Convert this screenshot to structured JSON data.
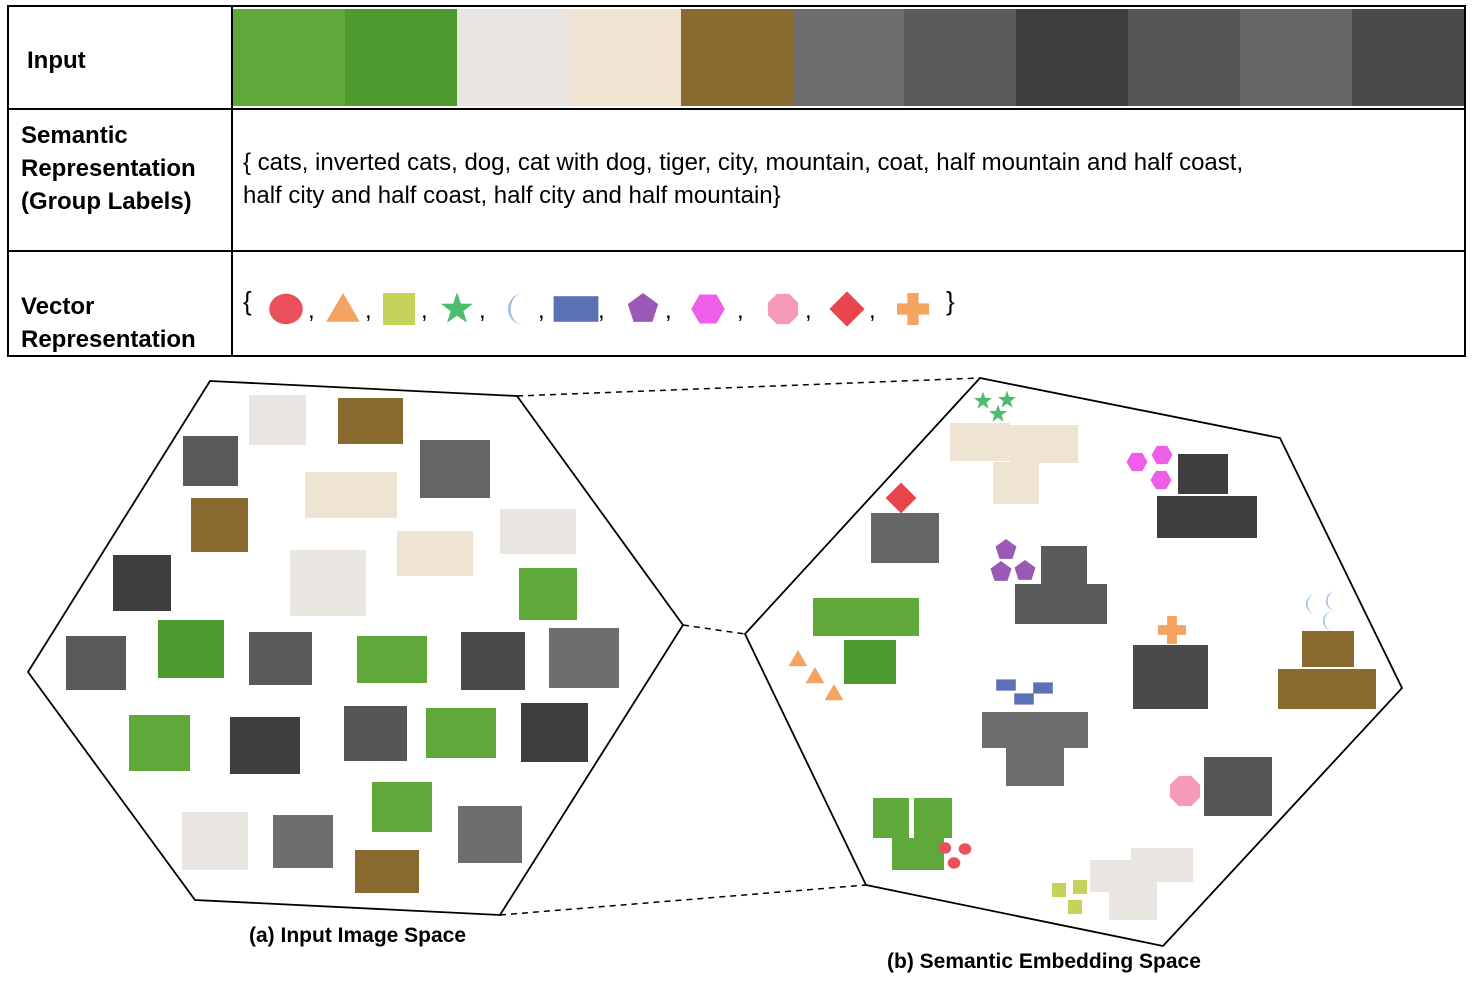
{
  "table": {
    "input_label": "Input",
    "semantic_label_lines": [
      "Semantic",
      "Representation",
      "(Group  Labels)"
    ],
    "semantic_text_lines": [
      "{ cats, inverted cats, dog,  cat with dog, tiger, city, mountain, coat, half mountain and half coast,",
      "half city and half coast, half city and half mountain}"
    ],
    "vector_label_lines": [
      "Vector",
      "Representation"
    ],
    "brace_open": "{",
    "brace_close": "}",
    "separator": ",",
    "input_images": [
      {
        "name": "cat-image",
        "color": "#5fa83a"
      },
      {
        "name": "inverted-cat-image",
        "color": "#4f9a2e"
      },
      {
        "name": "dog-image",
        "color": "#e9e6e2"
      },
      {
        "name": "cat-with-dog-image",
        "color": "#efe3d3"
      },
      {
        "name": "tiger-image",
        "color": "#8a6a2e"
      },
      {
        "name": "city-image",
        "color": "#6e6e6e"
      },
      {
        "name": "mountain-image",
        "color": "#5a5a5a"
      },
      {
        "name": "coast-image",
        "color": "#3e3e3e"
      },
      {
        "name": "half-mountain-half-coast-image",
        "color": "#555555"
      },
      {
        "name": "half-city-half-coast-image",
        "color": "#666666"
      },
      {
        "name": "half-city-half-mountain-image",
        "color": "#4a4a4a"
      }
    ],
    "vector_symbols": [
      {
        "shape": "circle",
        "color": "#e9505a"
      },
      {
        "shape": "triangle",
        "color": "#f4a460"
      },
      {
        "shape": "square",
        "color": "#c5d35a"
      },
      {
        "shape": "star",
        "color": "#4cbd6e"
      },
      {
        "shape": "moon",
        "color": "#9ec0e6"
      },
      {
        "shape": "rectangle",
        "color": "#5a72b5"
      },
      {
        "shape": "pentagon",
        "color": "#9b59b6"
      },
      {
        "shape": "hexagon",
        "color": "#ee5ee8"
      },
      {
        "shape": "octagon",
        "color": "#f59ab8"
      },
      {
        "shape": "diamond",
        "color": "#e8454c"
      },
      {
        "shape": "cross",
        "color": "#f4a460"
      }
    ]
  },
  "captions": {
    "input_space": "(a) Input Image Space",
    "embedding_space": "(b) Semantic Embedding Space"
  }
}
